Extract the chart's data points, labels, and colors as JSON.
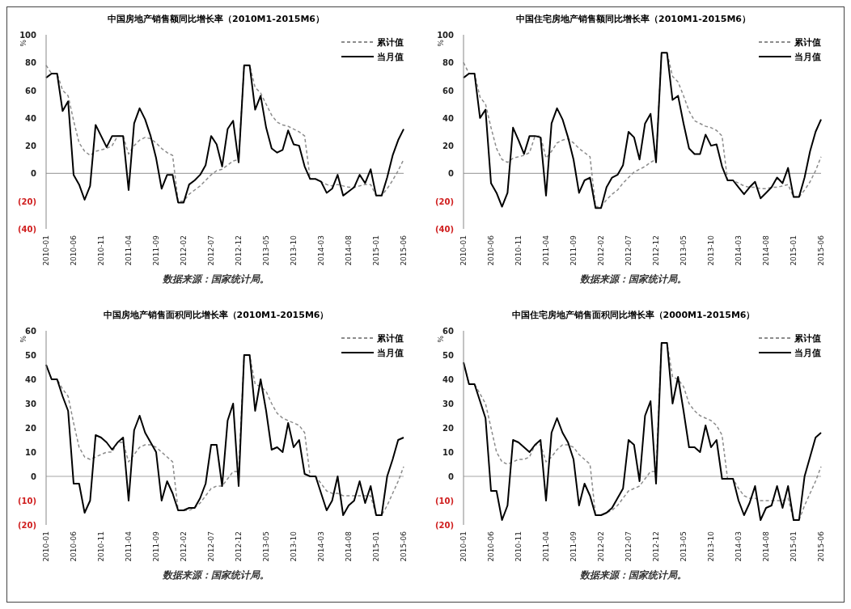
{
  "chart_data": [
    {
      "type": "line",
      "title": "中国房地产销售额同比增长率（2010M1-2015M6）",
      "ylabel": "%",
      "annotations": [
        "数据来源：国家统计局。"
      ],
      "legend": "top right",
      "ylim": [
        -40,
        100
      ],
      "yticks": [
        {
          "value": -40,
          "label": "(40)"
        },
        {
          "value": -20,
          "label": "(20)"
        },
        0,
        20,
        40,
        60,
        80,
        100
      ],
      "ref_lines": [
        {
          "axis": "y",
          "value": 0,
          "color": "#a6a6a6"
        }
      ],
      "categories": [
        "2010-01",
        null,
        null,
        null,
        null,
        "2010-06",
        null,
        null,
        null,
        null,
        "2010-11",
        null,
        null,
        null,
        null,
        "2011-04",
        null,
        null,
        null,
        null,
        "2011-09",
        null,
        null,
        null,
        null,
        "2012-02",
        null,
        null,
        null,
        null,
        "2012-07",
        null,
        null,
        null,
        null,
        "2012-12",
        null,
        null,
        null,
        null,
        "2013-05",
        null,
        null,
        null,
        null,
        "2013-10",
        null,
        null,
        null,
        null,
        "2014-03",
        null,
        null,
        null,
        null,
        "2014-08",
        null,
        null,
        null,
        null,
        "2015-01",
        null,
        null,
        null,
        null,
        "2015-06"
      ],
      "series": [
        {
          "name": "累计值",
          "color": "#8c8c8c",
          "line_style": "dashed",
          "values": [
            78,
            72,
            72,
            60,
            56,
            38,
            22,
            16,
            13,
            16,
            17,
            18,
            20,
            27,
            27,
            14,
            20,
            24,
            26,
            25,
            22,
            18,
            15,
            13,
            -20,
            -20,
            -15,
            -12,
            -9,
            -5,
            -1,
            2,
            3,
            6,
            9,
            10,
            78,
            78,
            62,
            58,
            50,
            42,
            37,
            35,
            34,
            32,
            30,
            27,
            -4,
            -4,
            -6,
            -8,
            -9,
            -8,
            -9,
            -10,
            -10,
            -9,
            -8,
            -8,
            -16,
            -16,
            -11,
            -5,
            2,
            10
          ]
        },
        {
          "name": "当月值",
          "color": "#000000",
          "line_style": "solid",
          "values": [
            69,
            72,
            72,
            45,
            52,
            -1,
            -8,
            -19,
            -9,
            35,
            27,
            19,
            27,
            27,
            27,
            -12,
            36,
            47,
            39,
            27,
            11,
            -11,
            -1,
            -1,
            -21,
            -21,
            -8,
            -5,
            -1,
            6,
            27,
            21,
            5,
            32,
            38,
            8,
            78,
            78,
            46,
            56,
            33,
            18,
            15,
            17,
            31,
            21,
            20,
            5,
            -4,
            -4,
            -6,
            -14,
            -11,
            -1,
            -16,
            -13,
            -10,
            -1,
            -7,
            3,
            -16,
            -16,
            -3,
            13,
            24,
            32
          ]
        }
      ]
    },
    {
      "type": "line",
      "title": "中国住宅房地产销售额同比增长率（2010M1-2015M6）",
      "ylabel": "%",
      "annotations": [
        "数据来源：国家统计局。"
      ],
      "legend": "top right",
      "ylim": [
        -40,
        100
      ],
      "yticks": [
        {
          "value": -40,
          "label": "(40)"
        },
        {
          "value": -20,
          "label": "(20)"
        },
        0,
        20,
        40,
        60,
        80,
        100
      ],
      "ref_lines": [
        {
          "axis": "y",
          "value": 0,
          "color": "#a6a6a6"
        }
      ],
      "categories": [
        "2010-01",
        null,
        null,
        null,
        null,
        "2010-06",
        null,
        null,
        null,
        null,
        "2010-11",
        null,
        null,
        null,
        null,
        "2011-04",
        null,
        null,
        null,
        null,
        "2011-09",
        null,
        null,
        null,
        null,
        "2012-02",
        null,
        null,
        null,
        null,
        "2012-07",
        null,
        null,
        null,
        null,
        "2012-12",
        null,
        null,
        null,
        null,
        "2013-05",
        null,
        null,
        null,
        null,
        "2013-10",
        null,
        null,
        null,
        null,
        "2014-03",
        null,
        null,
        null,
        null,
        "2014-08",
        null,
        null,
        null,
        null,
        "2015-01",
        null,
        null,
        null,
        null,
        "2015-06"
      ],
      "series": [
        {
          "name": "累计值",
          "color": "#8c8c8c",
          "line_style": "dashed",
          "values": [
            80,
            72,
            72,
            55,
            50,
            33,
            18,
            10,
            8,
            11,
            12,
            13,
            15,
            27,
            27,
            11,
            16,
            22,
            24,
            25,
            22,
            18,
            15,
            12,
            -24,
            -24,
            -19,
            -15,
            -12,
            -7,
            -3,
            1,
            3,
            5,
            8,
            10,
            87,
            87,
            70,
            66,
            56,
            45,
            38,
            36,
            34,
            33,
            31,
            27,
            -5,
            -5,
            -7,
            -9,
            -10,
            -10,
            -11,
            -11,
            -10,
            -10,
            -9,
            -8,
            -17,
            -17,
            -12,
            -6,
            2,
            12
          ]
        },
        {
          "name": "当月值",
          "color": "#000000",
          "line_style": "solid",
          "values": [
            69,
            72,
            72,
            40,
            46,
            -7,
            -14,
            -24,
            -14,
            33,
            24,
            14,
            27,
            27,
            26,
            -16,
            36,
            47,
            39,
            26,
            10,
            -14,
            -5,
            -3,
            -25,
            -25,
            -10,
            -3,
            -1,
            6,
            30,
            26,
            10,
            36,
            43,
            8,
            87,
            87,
            53,
            56,
            36,
            18,
            14,
            14,
            28,
            20,
            21,
            5,
            -5,
            -5,
            -10,
            -15,
            -10,
            -6,
            -18,
            -14,
            -10,
            -3,
            -7,
            4,
            -17,
            -17,
            -3,
            16,
            30,
            39
          ]
        }
      ]
    },
    {
      "type": "line",
      "title": "中国房地产销售面积同比增长率（2010M1-2015M6）",
      "ylabel": "%",
      "annotations": [
        "数据来源：国家统计局。"
      ],
      "legend": "top right",
      "ylim": [
        -20,
        60
      ],
      "yticks": [
        {
          "value": -20,
          "label": "(20)"
        },
        {
          "value": -10,
          "label": "(10)"
        },
        0,
        10,
        20,
        30,
        40,
        50,
        60
      ],
      "ref_lines": [
        {
          "axis": "y",
          "value": 0,
          "color": "#a6a6a6"
        }
      ],
      "categories": [
        "2010-01",
        null,
        null,
        null,
        null,
        "2010-06",
        null,
        null,
        null,
        null,
        "2010-11",
        null,
        null,
        null,
        null,
        "2011-04",
        null,
        null,
        null,
        null,
        "2011-09",
        null,
        null,
        null,
        null,
        "2012-02",
        null,
        null,
        null,
        null,
        "2012-07",
        null,
        null,
        null,
        null,
        "2012-12",
        null,
        null,
        null,
        null,
        "2013-05",
        null,
        null,
        null,
        null,
        "2013-10",
        null,
        null,
        null,
        null,
        "2014-03",
        null,
        null,
        null,
        null,
        "2014-08",
        null,
        null,
        null,
        null,
        "2015-01",
        null,
        null,
        null,
        null,
        "2015-06"
      ],
      "series": [
        {
          "name": "累计值",
          "color": "#8c8c8c",
          "line_style": "dashed",
          "values": [
            46,
            40,
            40,
            36,
            33,
            22,
            12,
            8,
            7,
            8,
            9,
            10,
            10,
            14,
            14,
            6,
            9,
            12,
            13,
            13,
            12,
            10,
            8,
            6,
            -14,
            -14,
            -14,
            -13,
            -11,
            -8,
            -5,
            -4,
            -4,
            -1,
            2,
            2,
            50,
            50,
            38,
            37,
            35,
            30,
            26,
            24,
            23,
            22,
            21,
            18,
            0,
            0,
            -3,
            -6,
            -7,
            -7,
            -8,
            -8,
            -8,
            -8,
            -8,
            -8,
            -16,
            -16,
            -12,
            -7,
            -2,
            4
          ]
        },
        {
          "name": "当月值",
          "color": "#000000",
          "line_style": "solid",
          "values": [
            46,
            40,
            40,
            33,
            27,
            -3,
            -3,
            -15,
            -10,
            17,
            16,
            14,
            11,
            14,
            16,
            -10,
            19,
            25,
            18,
            14,
            10,
            -10,
            -2,
            -7,
            -14,
            -14,
            -13,
            -13,
            -9,
            -3,
            13,
            13,
            -4,
            23,
            30,
            -4,
            50,
            50,
            27,
            40,
            27,
            11,
            12,
            10,
            22,
            12,
            15,
            1,
            0,
            0,
            -7,
            -14,
            -10,
            0,
            -16,
            -12,
            -10,
            -2,
            -11,
            -4,
            -16,
            -16,
            0,
            7,
            15,
            16
          ]
        }
      ]
    },
    {
      "type": "line",
      "title": "中国住宅房地产销售面积同比增长率（2000M1-2015M6）",
      "ylabel": "%",
      "annotations": [
        "数据来源：国家统计局。"
      ],
      "legend": "top right",
      "ylim": [
        -20,
        60
      ],
      "yticks": [
        {
          "value": -20,
          "label": "(20)"
        },
        {
          "value": -10,
          "label": "(10)"
        },
        0,
        10,
        20,
        30,
        40,
        50,
        60
      ],
      "ref_lines": [
        {
          "axis": "y",
          "value": 0,
          "color": "#a6a6a6"
        }
      ],
      "categories": [
        "2010-01",
        null,
        null,
        null,
        null,
        "2010-06",
        null,
        null,
        null,
        null,
        "2010-11",
        null,
        null,
        null,
        null,
        "2011-04",
        null,
        null,
        null,
        null,
        "2011-09",
        null,
        null,
        null,
        null,
        "2012-02",
        null,
        null,
        null,
        null,
        "2012-07",
        null,
        null,
        null,
        null,
        "2012-12",
        null,
        null,
        null,
        null,
        "2013-05",
        null,
        null,
        null,
        null,
        "2013-10",
        null,
        null,
        null,
        null,
        "2014-03",
        null,
        null,
        null,
        null,
        "2014-08",
        null,
        null,
        null,
        null,
        "2015-01",
        null,
        null,
        null,
        null,
        "2015-06"
      ],
      "series": [
        {
          "name": "累计值",
          "color": "#8c8c8c",
          "line_style": "dashed",
          "values": [
            47,
            38,
            38,
            34,
            30,
            20,
            10,
            6,
            5,
            6,
            7,
            7,
            8,
            13,
            13,
            6,
            8,
            11,
            13,
            13,
            12,
            9,
            7,
            5,
            -16,
            -16,
            -15,
            -14,
            -12,
            -9,
            -6,
            -5,
            -4,
            -1,
            2,
            2,
            55,
            55,
            41,
            40,
            37,
            30,
            27,
            25,
            24,
            23,
            21,
            17,
            -1,
            -1,
            -5,
            -8,
            -9,
            -9,
            -10,
            -10,
            -10,
            -10,
            -10,
            -9,
            -18,
            -18,
            -12,
            -7,
            -2,
            4
          ]
        },
        {
          "name": "当月值",
          "color": "#000000",
          "line_style": "solid",
          "values": [
            47,
            38,
            38,
            31,
            24,
            -6,
            -6,
            -18,
            -12,
            15,
            14,
            12,
            10,
            13,
            15,
            -10,
            18,
            24,
            18,
            14,
            7,
            -12,
            -3,
            -8,
            -16,
            -16,
            -15,
            -13,
            -9,
            -5,
            15,
            13,
            -2,
            25,
            31,
            -3,
            55,
            55,
            30,
            41,
            27,
            12,
            12,
            10,
            21,
            12,
            15,
            -1,
            -1,
            -1,
            -10,
            -16,
            -11,
            -4,
            -18,
            -13,
            -12,
            -4,
            -13,
            -4,
            -18,
            -18,
            0,
            8,
            16,
            18
          ]
        }
      ]
    }
  ]
}
